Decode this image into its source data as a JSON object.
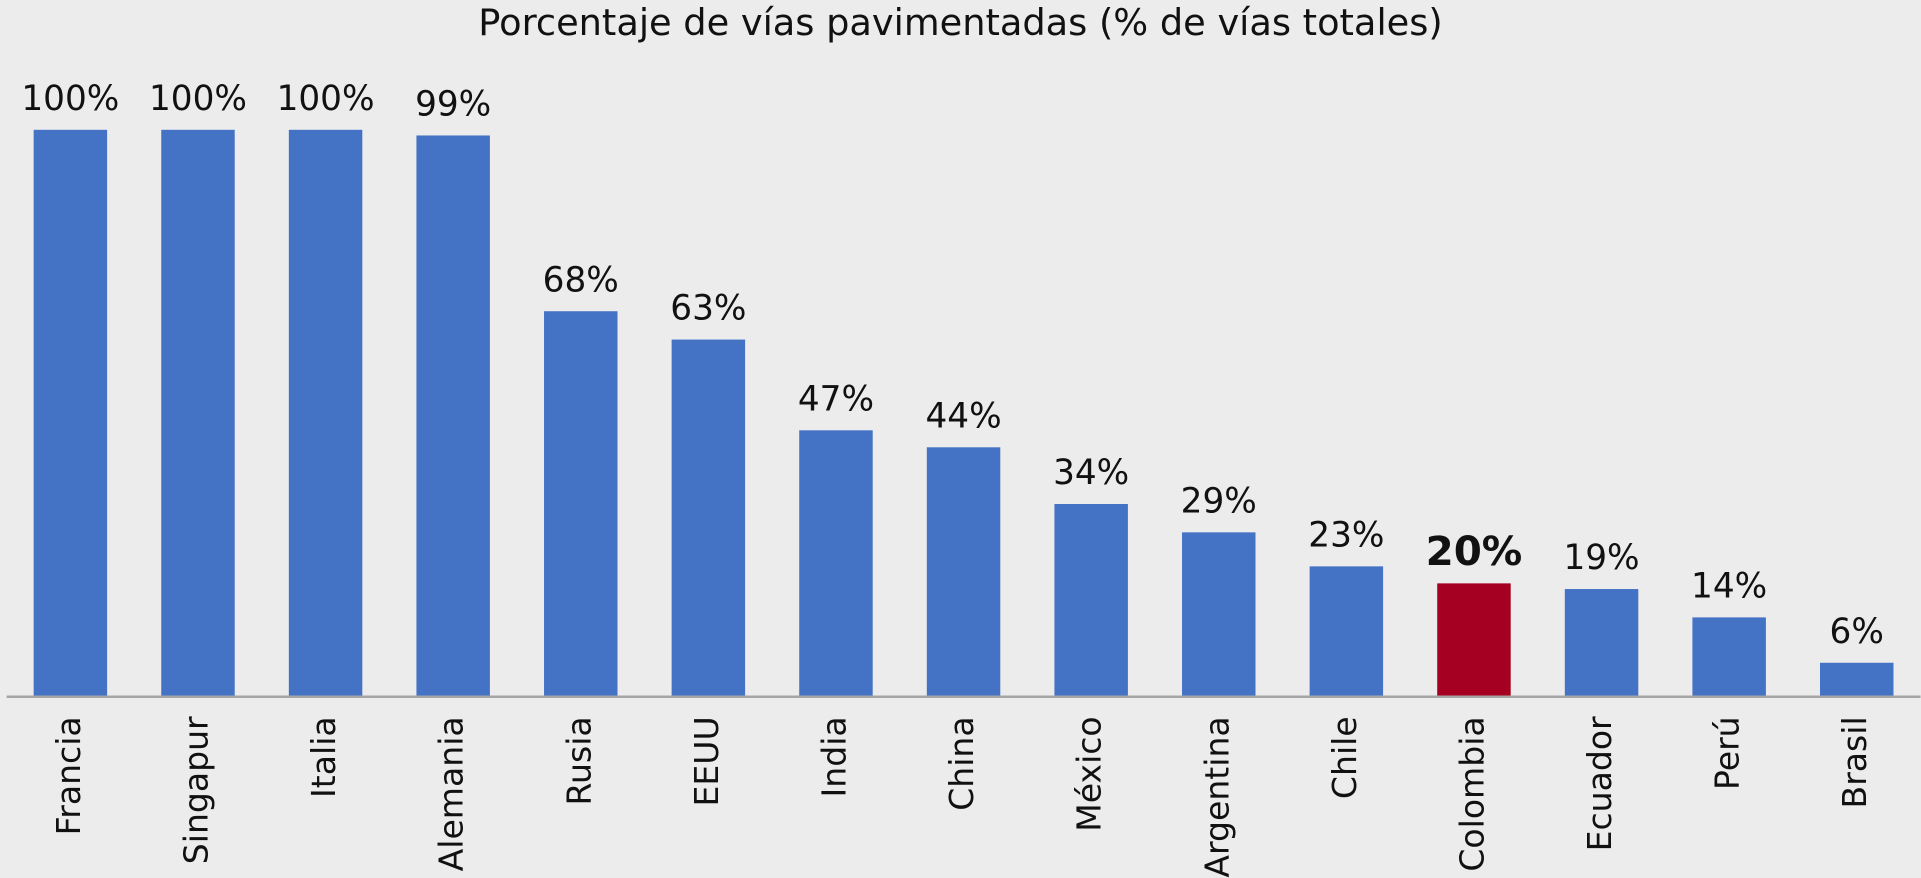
{
  "chart_data": {
    "type": "bar",
    "title": "Porcentaje de vías pavimentadas (% de vías totales)",
    "categories": [
      "Francia",
      "Singapur",
      "Italia",
      "Alemania",
      "Rusia",
      "EEUU",
      "India",
      "China",
      "México",
      "Argentina",
      "Chile",
      "Colombia",
      "Ecuador",
      "Perú",
      "Brasil"
    ],
    "values": [
      100,
      100,
      100,
      99,
      68,
      63,
      47,
      44,
      34,
      29,
      23,
      20,
      19,
      14,
      6
    ],
    "value_labels": [
      "100%",
      "100%",
      "100%",
      "99%",
      "68%",
      "63%",
      "47%",
      "44%",
      "34%",
      "29%",
      "23%",
      "20%",
      "19%",
      "14%",
      "6%"
    ],
    "color": "#4472c4",
    "colors": [
      "#4472c4",
      "#4472c4",
      "#4472c4",
      "#4472c4",
      "#4472c4",
      "#4472c4",
      "#4472c4",
      "#4472c4",
      "#4472c4",
      "#4472c4",
      "#4472c4",
      "#a50021",
      "#4472c4",
      "#4472c4",
      "#4472c4"
    ],
    "ylim": [
      0,
      100
    ]
  }
}
